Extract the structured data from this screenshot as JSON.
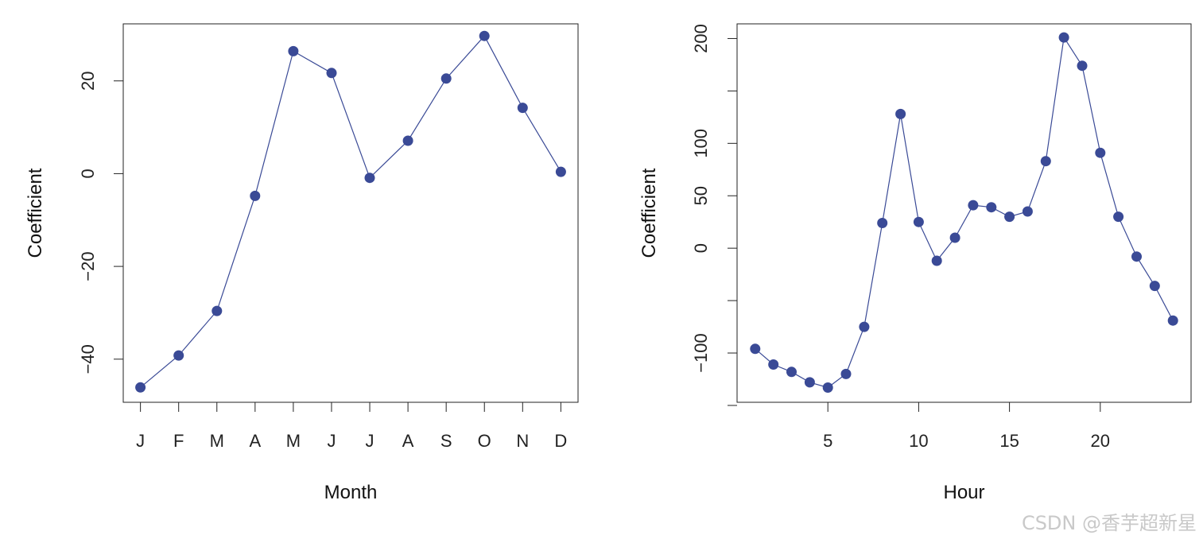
{
  "chart_data": [
    {
      "type": "line",
      "title": "",
      "xlabel": "Month",
      "ylabel": "Coefficient",
      "categories": [
        "J",
        "F",
        "M",
        "A",
        "M",
        "J",
        "J",
        "A",
        "S",
        "O",
        "N",
        "D"
      ],
      "values": [
        -46.1,
        -39.2,
        -29.6,
        -4.8,
        26.4,
        21.7,
        -0.9,
        7.1,
        20.5,
        29.7,
        14.2,
        0.4
      ],
      "ylim": [
        -49.3,
        32.3
      ],
      "yticks": [
        -40,
        -20,
        0,
        20
      ],
      "ytick_labels": [
        "−40",
        "−20",
        "0",
        "20"
      ],
      "series_color": "#3a4a96",
      "grid": false
    },
    {
      "type": "line",
      "title": "",
      "xlabel": "Hour",
      "ylabel": "Coefficient",
      "x": [
        1,
        2,
        3,
        4,
        5,
        6,
        7,
        8,
        9,
        10,
        11,
        12,
        13,
        14,
        15,
        16,
        17,
        18,
        19,
        20,
        21,
        22,
        23,
        24
      ],
      "values": [
        -96,
        -111,
        -118,
        -128,
        -133,
        -120,
        -75,
        24,
        128,
        25,
        -12,
        10,
        41,
        39,
        30,
        35,
        83,
        201,
        174,
        91,
        30,
        -8,
        -36,
        -69
      ],
      "xlim": [
        0.0,
        25.0
      ],
      "ylim": [
        -147,
        214
      ],
      "xticks": [
        5,
        10,
        15,
        20
      ],
      "xtick_labels": [
        "5",
        "10",
        "15",
        "20"
      ],
      "yticks": [
        -150,
        -100,
        -50,
        0,
        50,
        100,
        150,
        200
      ],
      "ytick_labels": [
        "",
        "−100",
        "",
        "0",
        "50",
        "100",
        "",
        "200"
      ],
      "series_color": "#3a4a96",
      "grid": false
    }
  ],
  "watermark": "CSDN @香芋超新星"
}
